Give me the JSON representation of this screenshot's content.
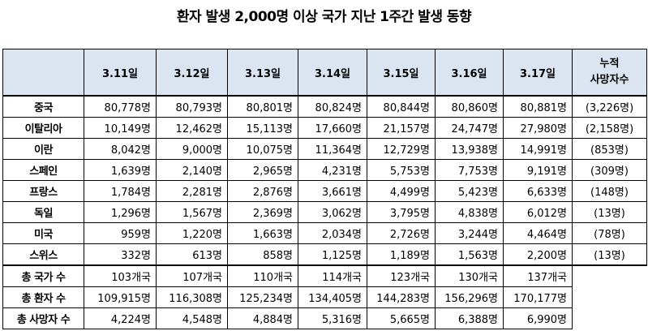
{
  "title": "환자 발생 2,000명 이상 국가 지난 1주간 발생 동향",
  "table": {
    "header": {
      "dates": [
        "3.11일",
        "3.12일",
        "3.13일",
        "3.14일",
        "3.15일",
        "3.16일",
        "3.17일"
      ],
      "deaths": "누적\n사망자수"
    },
    "rows": [
      {
        "country": "중국",
        "cases": [
          "80,778명",
          "80,793명",
          "80,801명",
          "80,824명",
          "80,844명",
          "80,860명",
          "80,881명"
        ],
        "deaths": "(3,226명)"
      },
      {
        "country": "이탈리아",
        "cases": [
          "10,149명",
          "12,462명",
          "15,113명",
          "17,660명",
          "21,157명",
          "24,747명",
          "27,980명"
        ],
        "deaths": "(2,158명)"
      },
      {
        "country": "이란",
        "cases": [
          "8,042명",
          "9,000명",
          "10,075명",
          "11,364명",
          "12,729명",
          "13,938명",
          "14,991명"
        ],
        "deaths": "(853명)"
      },
      {
        "country": "스페인",
        "cases": [
          "1,639명",
          "2,140명",
          "2,965명",
          "4,231명",
          "5,753명",
          "7,753명",
          "9,191명"
        ],
        "deaths": "(309명)"
      },
      {
        "country": "프랑스",
        "cases": [
          "1,784명",
          "2,281명",
          "2,876명",
          "3,661명",
          "4,499명",
          "5,423명",
          "6,633명"
        ],
        "deaths": "(148명)"
      },
      {
        "country": "독일",
        "cases": [
          "1,296명",
          "1,567명",
          "2,369명",
          "3,062명",
          "3,795명",
          "4,838명",
          "6,012명"
        ],
        "deaths": "(13명)"
      },
      {
        "country": "미국",
        "cases": [
          "959명",
          "1,220명",
          "1,663명",
          "2,034명",
          "2,726명",
          "3,244명",
          "4,464명"
        ],
        "deaths": "(78명)"
      },
      {
        "country": "스위스",
        "cases": [
          "332명",
          "613명",
          "858명",
          "1,125명",
          "1,189명",
          "1,563명",
          "2,200명"
        ],
        "deaths": "(13명)"
      }
    ],
    "summary": [
      {
        "label": "총 국가 수",
        "values": [
          "103개국",
          "107개국",
          "110개국",
          "114개국",
          "123개국",
          "130개국",
          "137개국"
        ]
      },
      {
        "label": "총 환자 수",
        "values": [
          "109,915명",
          "116,308명",
          "125,234명",
          "134,405명",
          "144,283명",
          "156,296명",
          "170,177명"
        ]
      },
      {
        "label": "총 사망자 수",
        "values": [
          "4,224명",
          "4,548명",
          "4,884명",
          "5,316명",
          "5,665명",
          "6,388명",
          "6,990명"
        ]
      }
    ]
  }
}
